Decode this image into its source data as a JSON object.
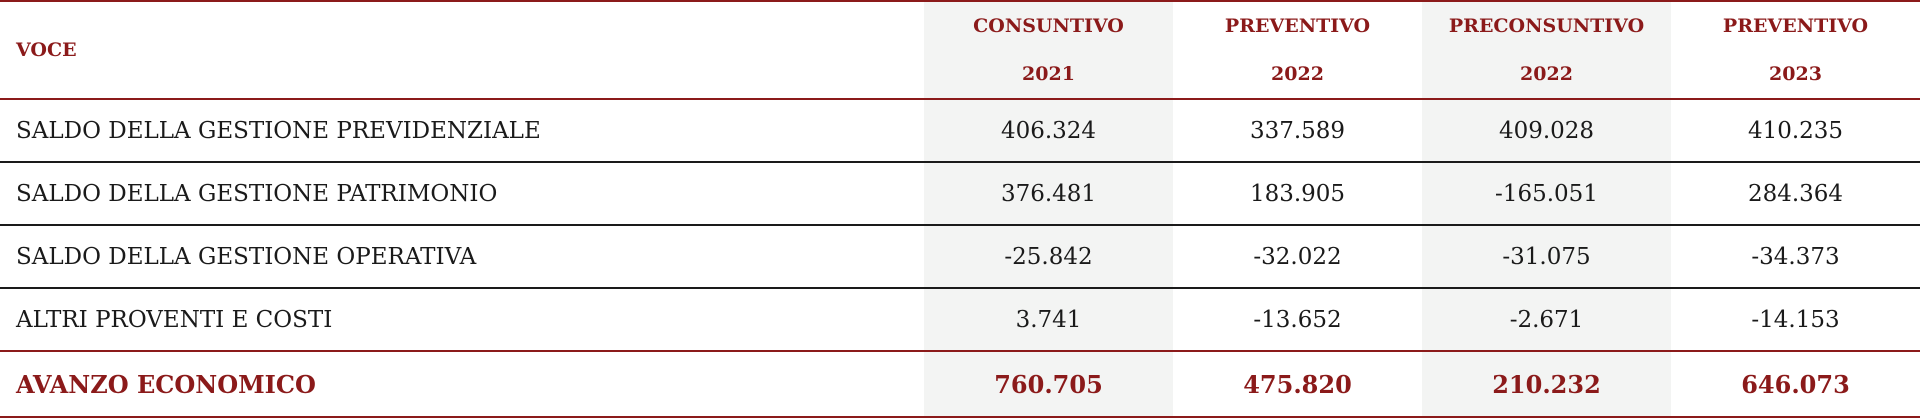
{
  "table": {
    "header": {
      "voce": "VOCE",
      "columns": [
        {
          "label": "CONSUNTIVO",
          "year": "2021"
        },
        {
          "label": "PREVENTIVO",
          "year": "2022"
        },
        {
          "label": "PRECONSUNTIVO",
          "year": "2022"
        },
        {
          "label": "PREVENTIVO",
          "year": "2023"
        }
      ]
    },
    "rows": [
      {
        "label": "SALDO DELLA GESTIONE PREVIDENZIALE",
        "values": [
          "406.324",
          "337.589",
          "409.028",
          "410.235"
        ]
      },
      {
        "label": "SALDO DELLA GESTIONE PATRIMONIO",
        "values": [
          "376.481",
          "183.905",
          "-165.051",
          "284.364"
        ]
      },
      {
        "label": "SALDO DELLA GESTIONE OPERATIVA",
        "values": [
          "-25.842",
          "-32.022",
          "-31.075",
          "-34.373"
        ]
      },
      {
        "label": "ALTRI PROVENTI E COSTI",
        "values": [
          "3.741",
          "-13.652",
          "-2.671",
          "-14.153"
        ]
      }
    ],
    "total": {
      "label": "AVANZO ECONOMICO",
      "values": [
        "760.705",
        "475.820",
        "210.232",
        "646.073"
      ]
    }
  }
}
